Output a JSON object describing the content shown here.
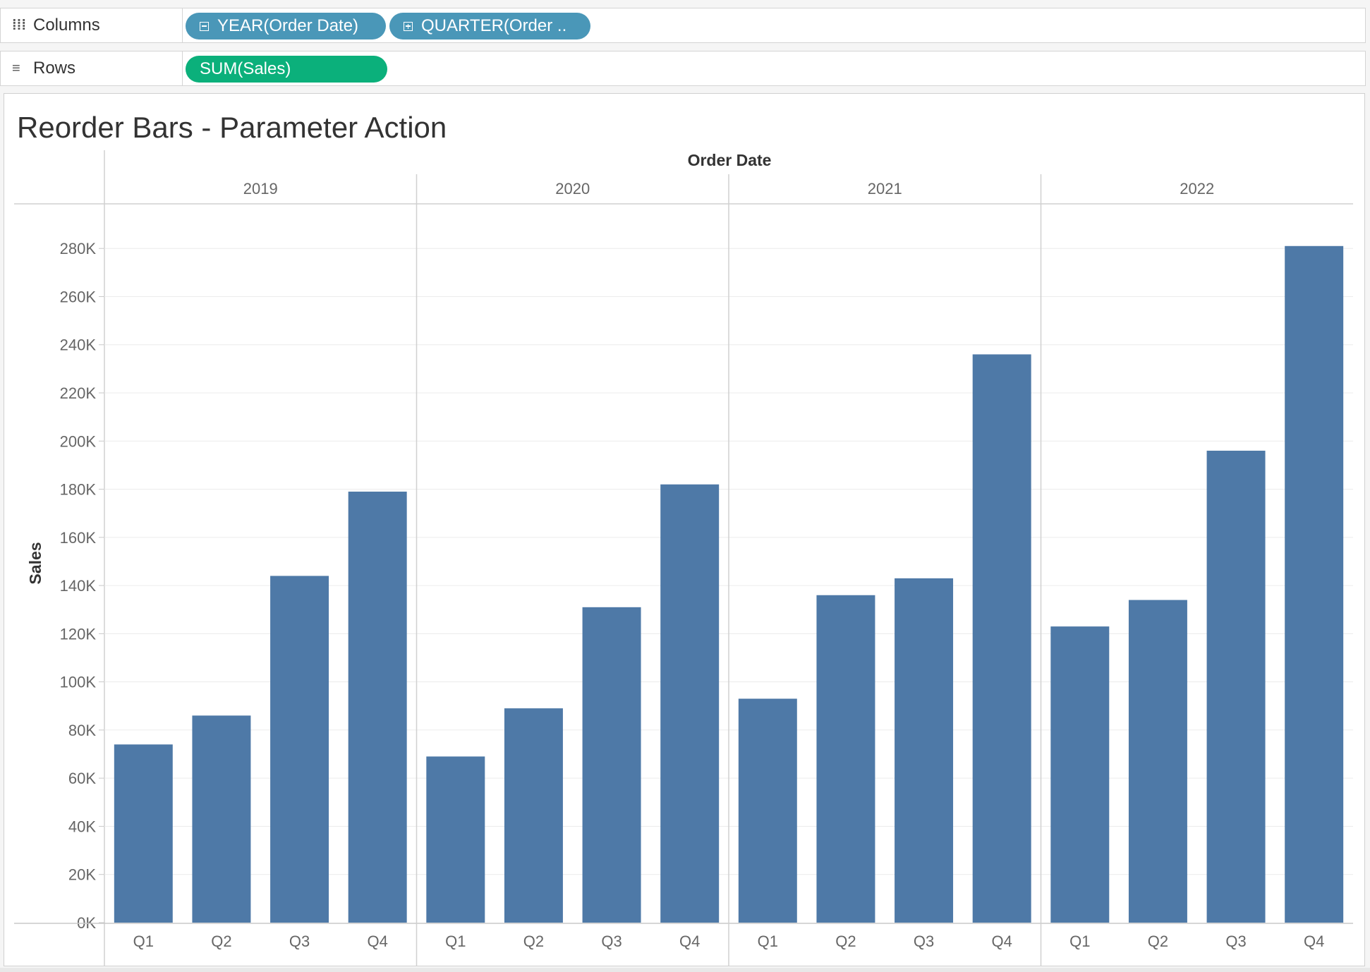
{
  "shelves": {
    "columns": {
      "label": "Columns",
      "icon": "columns-icon",
      "pills": [
        {
          "label": "YEAR(Order Date)",
          "icon": "collapse-icon"
        },
        {
          "label": "QUARTER(Order ..",
          "icon": "expand-icon"
        }
      ]
    },
    "rows": {
      "label": "Rows",
      "icon": "rows-icon",
      "pills": [
        {
          "label": "SUM(Sales)"
        }
      ]
    }
  },
  "colors": {
    "bar": "#4e79a7",
    "dimension_pill": "#4a97b8",
    "measure_pill": "#0bb07b"
  },
  "chart_data": {
    "type": "bar",
    "title": "Reorder Bars - Parameter Action",
    "column_header": "Order Date",
    "ylabel": "Sales",
    "ylim": [
      0,
      295000
    ],
    "yticks": [
      0,
      20000,
      40000,
      60000,
      80000,
      100000,
      120000,
      140000,
      160000,
      180000,
      200000,
      220000,
      240000,
      260000,
      280000
    ],
    "ytick_labels": [
      "0K",
      "20K",
      "40K",
      "60K",
      "80K",
      "100K",
      "120K",
      "140K",
      "160K",
      "180K",
      "200K",
      "220K",
      "240K",
      "260K",
      "280K"
    ],
    "grid": true,
    "groups": [
      {
        "year": "2019",
        "quarters": [
          "Q1",
          "Q2",
          "Q3",
          "Q4"
        ],
        "values": [
          74000,
          86000,
          144000,
          179000
        ]
      },
      {
        "year": "2020",
        "quarters": [
          "Q1",
          "Q2",
          "Q3",
          "Q4"
        ],
        "values": [
          69000,
          89000,
          131000,
          182000
        ]
      },
      {
        "year": "2021",
        "quarters": [
          "Q1",
          "Q2",
          "Q3",
          "Q4"
        ],
        "values": [
          93000,
          136000,
          143000,
          236000
        ]
      },
      {
        "year": "2022",
        "quarters": [
          "Q1",
          "Q2",
          "Q3",
          "Q4"
        ],
        "values": [
          123000,
          134000,
          196000,
          281000
        ]
      }
    ]
  }
}
